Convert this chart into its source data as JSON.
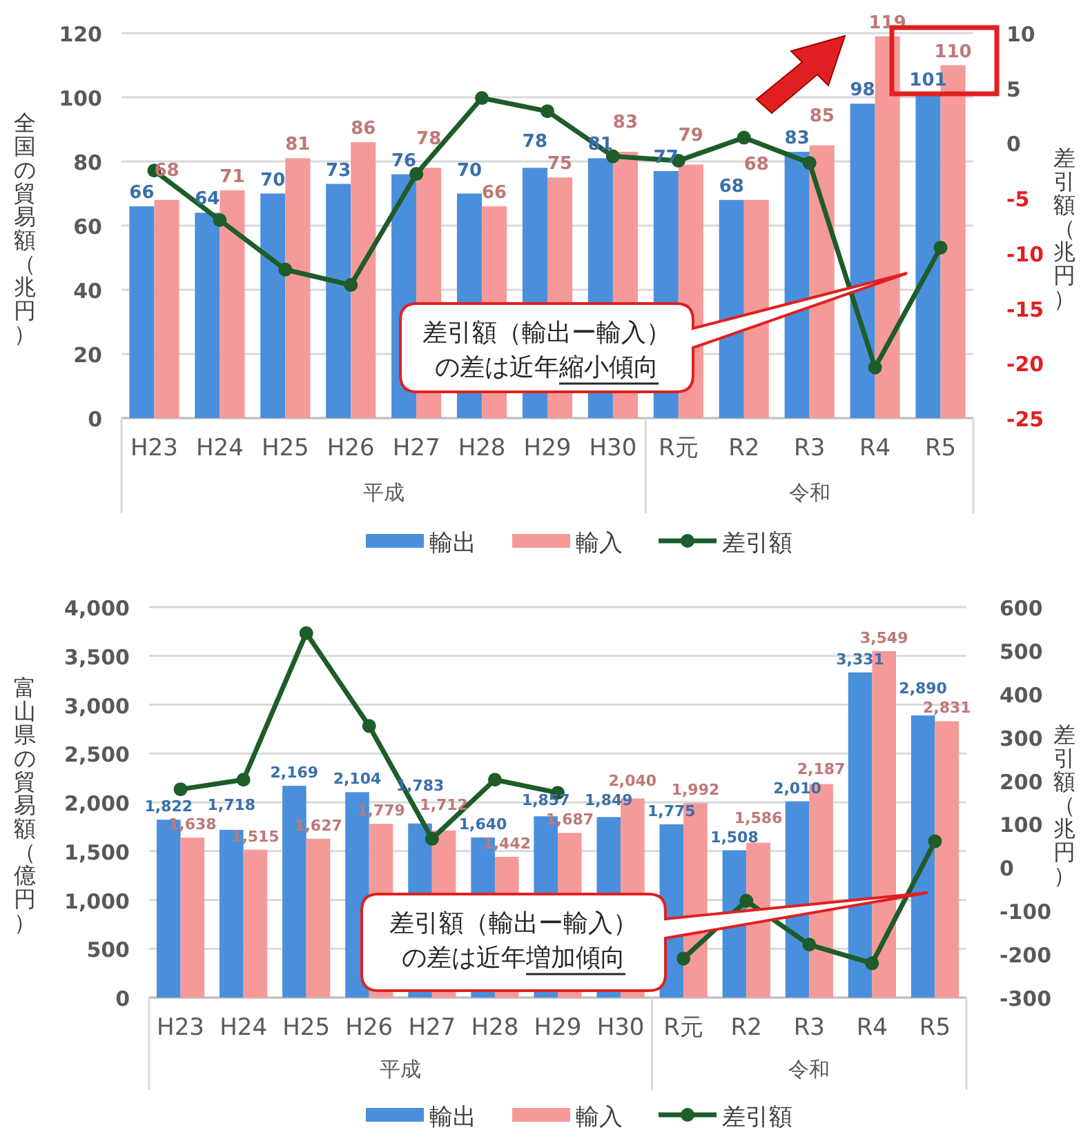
{
  "chart_data": [
    {
      "type": "bar",
      "categories": [
        "H23",
        "H24",
        "H25",
        "H26",
        "H27",
        "H28",
        "H29",
        "H30",
        "R元",
        "R2",
        "R3",
        "R4",
        "R5"
      ],
      "ylabel": "全国の貿易額（兆円）",
      "y2label": "差引額（兆円）",
      "series": [
        {
          "name": "輸出",
          "color": "#4a8fdb",
          "values": [
            66,
            64,
            70,
            73,
            76,
            70,
            78,
            81,
            77,
            68,
            83,
            98,
            101
          ],
          "value_labels": [
            "66",
            "64",
            "70",
            "73",
            "76",
            "70",
            "78",
            "81",
            "77",
            "68",
            "83",
            "98",
            "101"
          ]
        },
        {
          "name": "輸入",
          "color": "#f59a98",
          "values": [
            68,
            71,
            81,
            86,
            78,
            66,
            75,
            83,
            79,
            68,
            85,
            119,
            110
          ],
          "value_labels": [
            "68",
            "71",
            "81",
            "86",
            "78",
            "66",
            "75",
            "83",
            "79",
            "68",
            "85",
            "119",
            "110"
          ]
        },
        {
          "name": "差引額",
          "type": "line",
          "axis": "y2",
          "color": "#1e5c2a",
          "values": [
            -2.5,
            -7.0,
            -11.5,
            -12.9,
            -2.8,
            4.1,
            2.9,
            -1.2,
            -1.6,
            0.5,
            -1.8,
            -20.4,
            -9.5
          ]
        }
      ],
      "ylim": [
        0,
        120
      ],
      "yticks": [
        0,
        20,
        40,
        60,
        80,
        100,
        120
      ],
      "y2lim": [
        -25,
        10
      ],
      "y2ticks": [
        -25,
        -20,
        -15,
        -10,
        -5,
        0,
        5,
        10
      ],
      "grid": "y",
      "legend": "bottom",
      "marker": "circle",
      "line_style": "solid",
      "annotations": [
        "平成",
        "令和",
        "差引額（輸出ー輸入）の差は近年縮小傾向"
      ]
    },
    {
      "type": "bar",
      "categories": [
        "H23",
        "H24",
        "H25",
        "H26",
        "H27",
        "H28",
        "H29",
        "H30",
        "R元",
        "R2",
        "R3",
        "R4",
        "R5"
      ],
      "ylabel": "富山県の貿易額（億円）",
      "y2label": "差引額（兆円）",
      "series": [
        {
          "name": "輸出",
          "color": "#4a8fdb",
          "values": [
            1822,
            1718,
            2169,
            2104,
            1783,
            1640,
            1857,
            1849,
            1775,
            1508,
            2010,
            3331,
            2890
          ],
          "value_labels": [
            "1,822",
            "1,718",
            "2,169",
            "2,104",
            "1,783",
            "1,640",
            "1,857",
            "1,849",
            "1,775",
            "1,508",
            "2,010",
            "3,331",
            "2,890"
          ]
        },
        {
          "name": "輸入",
          "color": "#f59a98",
          "values": [
            1638,
            1515,
            1627,
            1779,
            1712,
            1442,
            1687,
            2040,
            1992,
            1586,
            2187,
            3549,
            2831
          ],
          "value_labels": [
            "1,638",
            "1,515",
            "1,627",
            "1,779",
            "1,712",
            "1,442",
            "1,687",
            "2,040",
            "1,992",
            "1,586",
            "2,187",
            "3,549",
            "2,831"
          ]
        },
        {
          "name": "差引額",
          "type": "line",
          "axis": "y2",
          "color": "#1e5c2a",
          "values": [
            180,
            202,
            540,
            326,
            66,
            202,
            172,
            null,
            -210,
            -77,
            -178,
            -221,
            60
          ]
        }
      ],
      "ylim": [
        0,
        4000
      ],
      "yticks": [
        0,
        {
          "value": 500,
          "label": "500"
        },
        {
          "value": 1000,
          "label": "1,000"
        },
        {
          "value": 1500,
          "label": "1,500"
        },
        {
          "value": 2000,
          "label": "2,000"
        },
        {
          "value": 2500,
          "label": "2,500"
        },
        {
          "value": 3000,
          "label": "3,000"
        },
        {
          "value": 3500,
          "label": "3,500"
        },
        {
          "value": 4000,
          "label": "4,000"
        }
      ],
      "y2lim": [
        -300,
        600
      ],
      "y2ticks": [
        -300,
        -200,
        -100,
        0,
        100,
        200,
        300,
        400,
        500,
        600
      ],
      "grid": "y",
      "legend": "bottom",
      "marker": "circle",
      "line_style": "solid",
      "annotations": [
        "平成",
        "令和",
        "差引額（輸出ー輸入）の差は近年増加傾向"
      ]
    }
  ]
}
